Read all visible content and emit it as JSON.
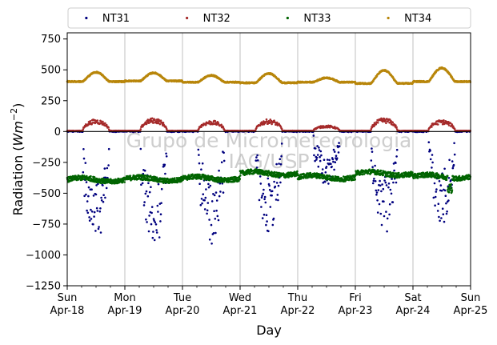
{
  "chart_data": {
    "type": "scatter",
    "title": "",
    "xlabel": "Day",
    "ylabel_prefix": "Radiation (",
    "ylabel_unit": "Wm",
    "ylabel_exponent": "−2",
    "ylabel_suffix": ")",
    "ylim": [
      -1250,
      800
    ],
    "yticks": [
      {
        "value": -1250,
        "label": "−1250"
      },
      {
        "value": -1000,
        "label": "−1000"
      },
      {
        "value": -750,
        "label": "−750"
      },
      {
        "value": -500,
        "label": "−500"
      },
      {
        "value": -250,
        "label": "−250"
      },
      {
        "value": 0,
        "label": "0"
      },
      {
        "value": 250,
        "label": "250"
      },
      {
        "value": 500,
        "label": "500"
      },
      {
        "value": 750,
        "label": "750"
      }
    ],
    "xlim": [
      "2021-04-18",
      "2021-04-25"
    ],
    "xticks": [
      {
        "date": "2021-04-18",
        "weekday": "Sun",
        "date_label": "Apr-18"
      },
      {
        "date": "2021-04-19",
        "weekday": "Mon",
        "date_label": "Apr-19"
      },
      {
        "date": "2021-04-20",
        "weekday": "Tue",
        "date_label": "Apr-20"
      },
      {
        "date": "2021-04-21",
        "weekday": "Wed",
        "date_label": "Apr-21"
      },
      {
        "date": "2021-04-22",
        "weekday": "Thu",
        "date_label": "Apr-22"
      },
      {
        "date": "2021-04-23",
        "weekday": "Fri",
        "date_label": "Apr-23"
      },
      {
        "date": "2021-04-24",
        "weekday": "Sat",
        "date_label": "Apr-24"
      },
      {
        "date": "2021-04-25",
        "weekday": "Sun",
        "date_label": "Apr-25"
      }
    ],
    "grid": {
      "vertical": true,
      "horizontal": false
    },
    "hline": {
      "y": 0,
      "color": "#000000"
    },
    "legend": {
      "placement": "top",
      "ncol": 4
    },
    "watermark": [
      "Grupo de Micrometeorologia",
      "IAG/USP"
    ],
    "series": [
      {
        "name": "NT31",
        "color": "#00007f",
        "profile": "daytime-dip",
        "daily_min": [
          -970,
          -1010,
          -940,
          -870,
          -440,
          -860,
          -770
        ],
        "night_value": 0,
        "comment_values": "negative during daylight hours (about 06:30-17:30), near 0 at night"
      },
      {
        "name": "NT32",
        "color": "#a52a2a",
        "profile": "daytime-peak",
        "daily_max": [
          100,
          110,
          90,
          100,
          50,
          110,
          95
        ],
        "night_value": 5
      },
      {
        "name": "NT33",
        "color": "#006400",
        "profile": "near-constant",
        "daily_mean": [
          -390,
          -385,
          -380,
          -340,
          -370,
          -340,
          -365
        ],
        "end_dip_min": -500
      },
      {
        "name": "NT34",
        "color": "#b8860b",
        "profile": "daytime-peak",
        "baseline": [
          405,
          410,
          400,
          395,
          400,
          390,
          405
        ],
        "daily_max": [
          480,
          475,
          455,
          470,
          435,
          495,
          515
        ]
      }
    ]
  }
}
